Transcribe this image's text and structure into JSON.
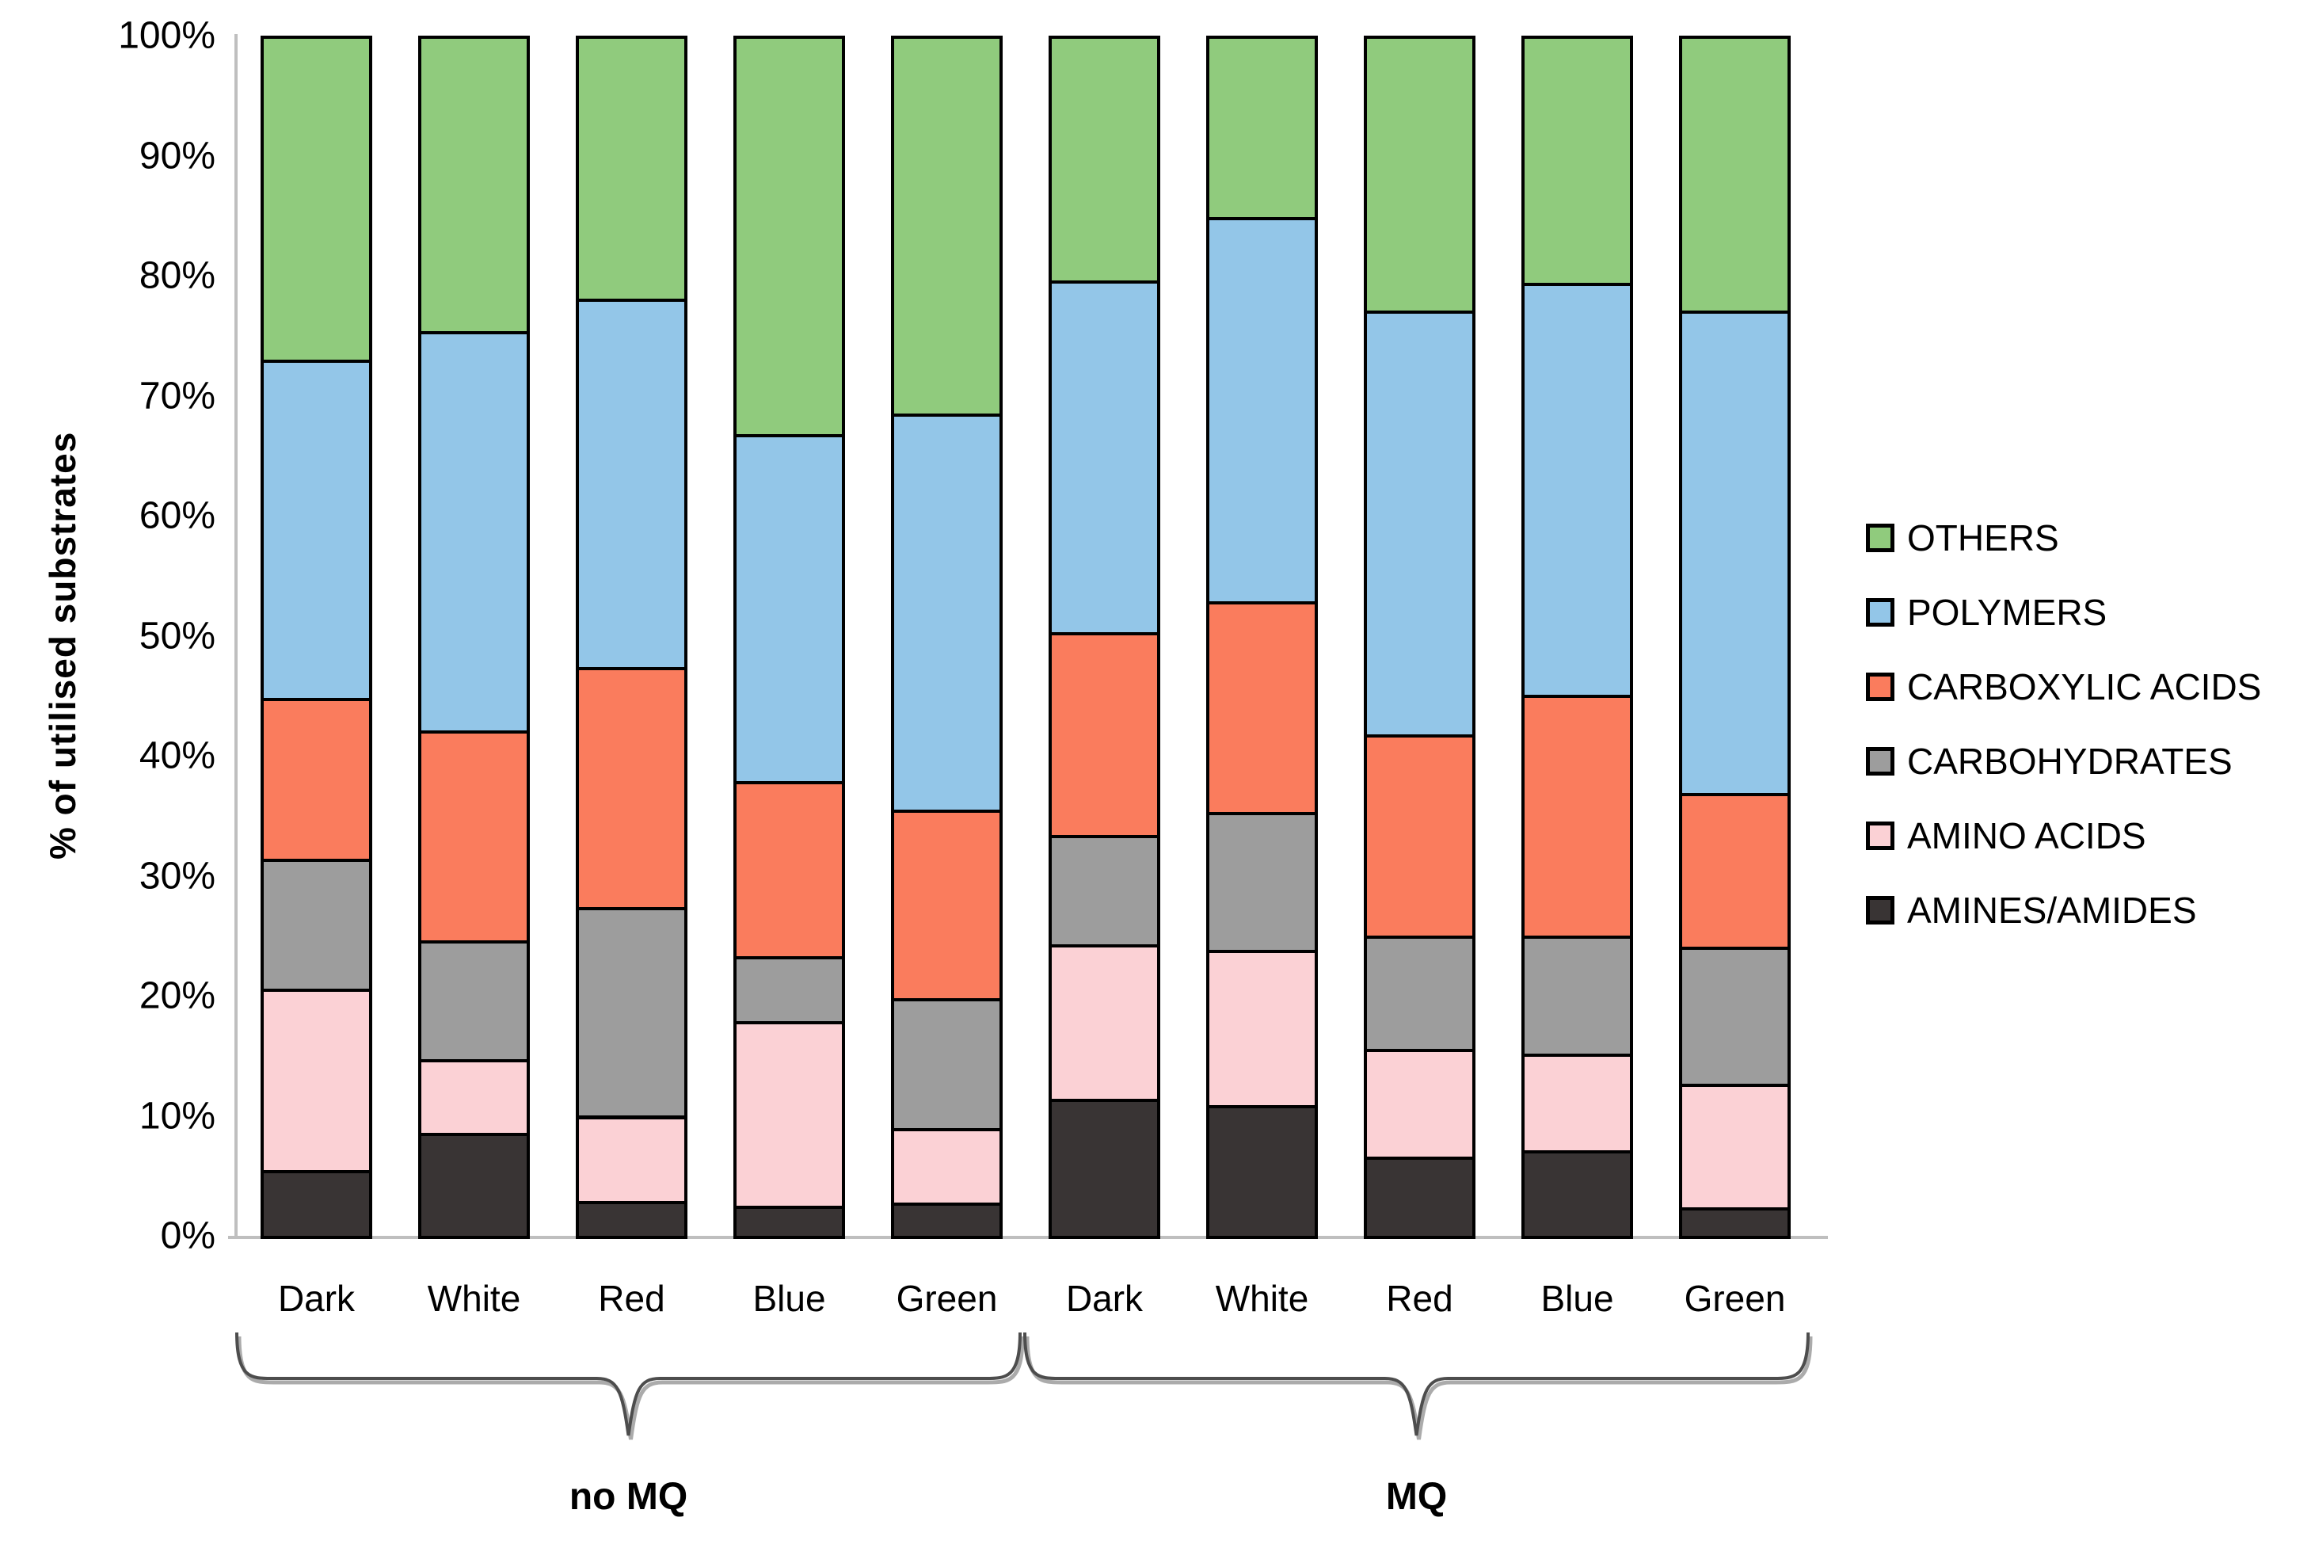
{
  "chart_data": {
    "type": "bar",
    "subtype": "stacked-100-percent",
    "title": "",
    "ylabel": "% of utilised substrates",
    "xlabel": "",
    "ylim": [
      0,
      100
    ],
    "ytick_labels": [
      "0%",
      "10%",
      "20%",
      "30%",
      "40%",
      "50%",
      "60%",
      "70%",
      "80%",
      "90%",
      "100%"
    ],
    "grid": false,
    "legend_position": "right",
    "legend_order_top_to_bottom": [
      "OTHERS",
      "POLYMERS",
      "CARBOXYLIC ACIDS",
      "CARBOHYDRATES",
      "AMINO ACIDS",
      "AMINES/AMIDES"
    ],
    "categories": [
      "Dark",
      "White",
      "Red",
      "Blue",
      "Green",
      "Dark",
      "White",
      "Red",
      "Blue",
      "Green"
    ],
    "groups": [
      {
        "label": "no MQ",
        "category_indexes": [
          0,
          1,
          2,
          3,
          4
        ]
      },
      {
        "label": "MQ",
        "category_indexes": [
          5,
          6,
          7,
          8,
          9
        ]
      }
    ],
    "series": [
      {
        "name": "AMINES/AMIDES",
        "color": "#393434",
        "values": [
          5.5,
          8.6,
          2.9,
          2.5,
          2.8,
          11.4,
          10.9,
          6.6,
          7.1,
          2.4
        ]
      },
      {
        "name": "AMINO ACIDS",
        "color": "#fbd1d5",
        "values": [
          15.1,
          6.1,
          7.1,
          15.4,
          6.2,
          12.9,
          12.9,
          9.0,
          8.1,
          10.3
        ]
      },
      {
        "name": "CARBOHYDRATES",
        "color": "#9d9d9d",
        "values": [
          10.8,
          9.9,
          17.4,
          5.4,
          10.8,
          9.1,
          11.5,
          9.4,
          9.8,
          11.4
        ]
      },
      {
        "name": "CARBOXYLIC ACIDS",
        "color": "#fa7c5d",
        "values": [
          13.4,
          17.5,
          20.0,
          14.6,
          15.7,
          16.9,
          17.6,
          16.8,
          20.1,
          12.8
        ]
      },
      {
        "name": "POLYMERS",
        "color": "#93c6e8",
        "values": [
          28.2,
          33.3,
          30.7,
          28.9,
          33.0,
          29.3,
          32.0,
          35.3,
          34.3,
          40.2
        ]
      },
      {
        "name": "OTHERS",
        "color": "#90cb7d",
        "values": [
          27.0,
          24.6,
          21.9,
          33.2,
          31.5,
          20.4,
          15.1,
          22.9,
          20.6,
          22.9
        ]
      }
    ],
    "colors": {
      "segment_border": "#000000",
      "axis_line": "#bfbfbf",
      "brace": "#4d4d4d",
      "brace_shadow": "#ababab",
      "text": "#000000"
    }
  }
}
